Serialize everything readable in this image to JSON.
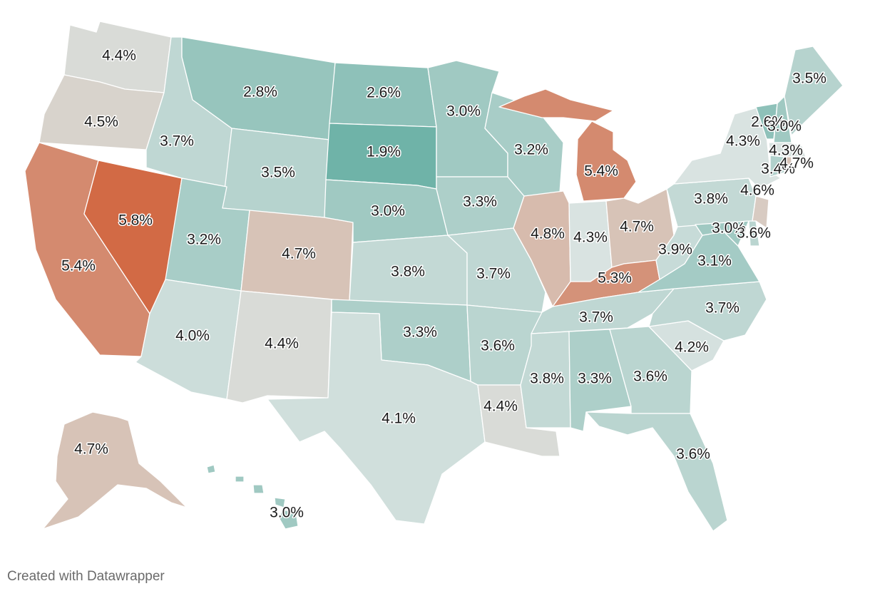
{
  "map": {
    "subject": "US states",
    "color_scale": {
      "low": "#6fb3a8",
      "mid": "#d9e3e1",
      "high": "#d26a45"
    },
    "states": [
      {
        "name": "Washington",
        "value": "4.4%",
        "num": 4.4
      },
      {
        "name": "Oregon",
        "value": "4.5%",
        "num": 4.5
      },
      {
        "name": "California",
        "value": "5.4%",
        "num": 5.4
      },
      {
        "name": "Nevada",
        "value": "5.8%",
        "num": 5.8
      },
      {
        "name": "Idaho",
        "value": "3.7%",
        "num": 3.7
      },
      {
        "name": "Montana",
        "value": "2.8%",
        "num": 2.8
      },
      {
        "name": "Wyoming",
        "value": "3.5%",
        "num": 3.5
      },
      {
        "name": "Utah",
        "value": "3.2%",
        "num": 3.2
      },
      {
        "name": "Arizona",
        "value": "4.0%",
        "num": 4.0
      },
      {
        "name": "Colorado",
        "value": "4.7%",
        "num": 4.7
      },
      {
        "name": "New Mexico",
        "value": "4.4%",
        "num": 4.4
      },
      {
        "name": "North Dakota",
        "value": "2.6%",
        "num": 2.6
      },
      {
        "name": "South Dakota",
        "value": "1.9%",
        "num": 1.9
      },
      {
        "name": "Nebraska",
        "value": "3.0%",
        "num": 3.0
      },
      {
        "name": "Kansas",
        "value": "3.8%",
        "num": 3.8
      },
      {
        "name": "Oklahoma",
        "value": "3.3%",
        "num": 3.3
      },
      {
        "name": "Texas",
        "value": "4.1%",
        "num": 4.1
      },
      {
        "name": "Minnesota",
        "value": "3.0%",
        "num": 3.0
      },
      {
        "name": "Iowa",
        "value": "3.3%",
        "num": 3.3
      },
      {
        "name": "Missouri",
        "value": "3.7%",
        "num": 3.7
      },
      {
        "name": "Arkansas",
        "value": "3.6%",
        "num": 3.6
      },
      {
        "name": "Louisiana",
        "value": "4.4%",
        "num": 4.4
      },
      {
        "name": "Wisconsin",
        "value": "3.2%",
        "num": 3.2
      },
      {
        "name": "Illinois",
        "value": "4.8%",
        "num": 4.8
      },
      {
        "name": "Michigan",
        "value": "5.4%",
        "num": 5.4
      },
      {
        "name": "Indiana",
        "value": "4.3%",
        "num": 4.3
      },
      {
        "name": "Ohio",
        "value": "4.7%",
        "num": 4.7
      },
      {
        "name": "Kentucky",
        "value": "5.3%",
        "num": 5.3
      },
      {
        "name": "Tennessee",
        "value": "3.7%",
        "num": 3.7
      },
      {
        "name": "Mississippi",
        "value": "3.8%",
        "num": 3.8
      },
      {
        "name": "Alabama",
        "value": "3.3%",
        "num": 3.3
      },
      {
        "name": "Georgia",
        "value": "3.6%",
        "num": 3.6
      },
      {
        "name": "Florida",
        "value": "3.6%",
        "num": 3.6
      },
      {
        "name": "South Carolina",
        "value": "4.2%",
        "num": 4.2
      },
      {
        "name": "North Carolina",
        "value": "3.7%",
        "num": 3.7
      },
      {
        "name": "Virginia",
        "value": "3.1%",
        "num": 3.1
      },
      {
        "name": "West Virginia",
        "value": "3.9%",
        "num": 3.9
      },
      {
        "name": "Pennsylvania",
        "value": "3.8%",
        "num": 3.8
      },
      {
        "name": "New York",
        "value": "4.3%",
        "num": 4.3
      },
      {
        "name": "New Jersey",
        "value": "4.6%",
        "num": 4.6
      },
      {
        "name": "Maryland",
        "value": "3.0%",
        "num": 3.0
      },
      {
        "name": "Delaware",
        "value": "3.6%",
        "num": 3.6
      },
      {
        "name": "Vermont",
        "value": "2.6%",
        "num": 2.6
      },
      {
        "name": "New Hampshire",
        "value": "3.0%",
        "num": 3.0
      },
      {
        "name": "Maine",
        "value": "3.5%",
        "num": 3.5
      },
      {
        "name": "Massachusetts",
        "value": "4.3%",
        "num": 4.3
      },
      {
        "name": "Connecticut",
        "value": "3.4%",
        "num": 3.4
      },
      {
        "name": "Rhode Island",
        "value": "4.7%",
        "num": 4.7
      },
      {
        "name": "Alaska",
        "value": "4.7%",
        "num": 4.7
      },
      {
        "name": "Hawaii",
        "value": "3.0%",
        "num": 3.0
      }
    ]
  },
  "footer": {
    "credit": "Created with Datawrapper"
  }
}
